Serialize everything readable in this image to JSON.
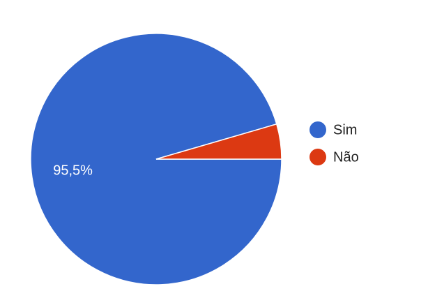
{
  "chart_data": {
    "type": "pie",
    "categories": [
      "Sim",
      "Não"
    ],
    "values": [
      95.5,
      4.5
    ],
    "value_labels": [
      "95,5%",
      null
    ],
    "colors": [
      "#3366cc",
      "#dc3912"
    ],
    "legend": "right"
  }
}
